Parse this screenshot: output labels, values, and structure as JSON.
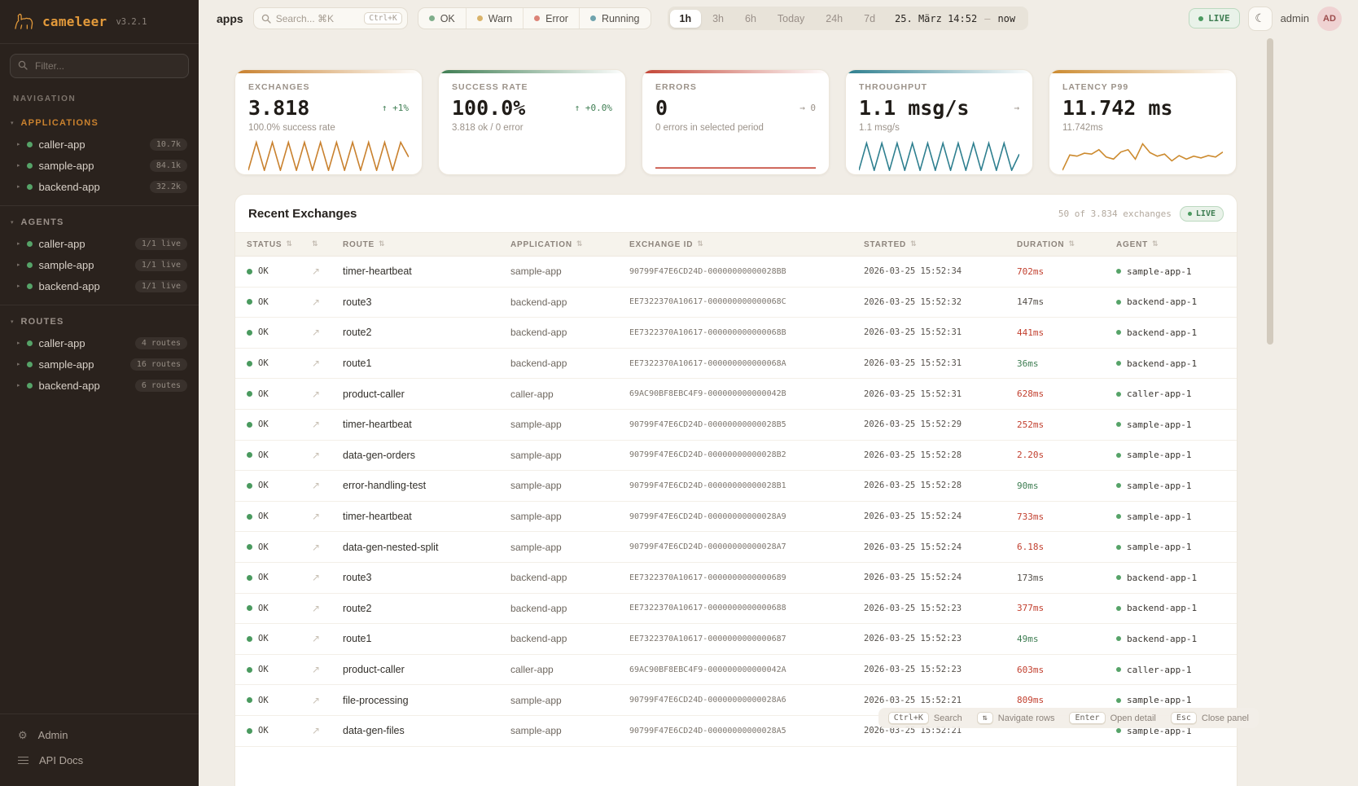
{
  "icons": {
    "sort": "⇅",
    "link": "↗",
    "moon": "☾",
    "gear": "⚙",
    "caret_section": "▾",
    "caret_item": "▸"
  },
  "sidebar": {
    "logo": "cameleer",
    "version": "v3.2.1",
    "filter_placeholder": "Filter...",
    "nav_label": "NAVIGATION",
    "sections": [
      {
        "label": "APPLICATIONS",
        "accent": true,
        "items": [
          {
            "name": "caller-app",
            "badge": "10.7k"
          },
          {
            "name": "sample-app",
            "badge": "84.1k"
          },
          {
            "name": "backend-app",
            "badge": "32.2k"
          }
        ]
      },
      {
        "label": "AGENTS",
        "accent": false,
        "items": [
          {
            "name": "caller-app",
            "badge": "1/1 live"
          },
          {
            "name": "sample-app",
            "badge": "1/1 live"
          },
          {
            "name": "backend-app",
            "badge": "1/1 live"
          }
        ]
      },
      {
        "label": "ROUTES",
        "accent": false,
        "items": [
          {
            "name": "caller-app",
            "badge": "4 routes"
          },
          {
            "name": "sample-app",
            "badge": "16 routes"
          },
          {
            "name": "backend-app",
            "badge": "6 routes"
          }
        ]
      }
    ],
    "footer": [
      {
        "label": "Admin",
        "icon": "gear"
      },
      {
        "label": "API Docs",
        "icon": "list"
      }
    ]
  },
  "topbar": {
    "context": "apps",
    "search_placeholder": "Search... ⌘K",
    "search_kbd": "Ctrl+K",
    "status_filters": [
      {
        "label": "OK",
        "color": "#7fae8b"
      },
      {
        "label": "Warn",
        "color": "#d9b36a"
      },
      {
        "label": "Error",
        "color": "#dc8377"
      },
      {
        "label": "Running",
        "color": "#6fa3ad"
      }
    ],
    "ranges": [
      "1h",
      "3h",
      "6h",
      "Today",
      "24h",
      "7d"
    ],
    "selected_range": "1h",
    "date_from": "25. März 14:52",
    "date_sep": "—",
    "date_to": "now",
    "live_label": "LIVE",
    "user": "admin",
    "avatar": "AD"
  },
  "kpis": [
    {
      "label": "EXCHANGES",
      "value": "3.818",
      "delta": "↑ +1%",
      "delta_type": "up",
      "subtitle": "100.0% success rate",
      "accent": "#c9812e",
      "spark": [
        100,
        5,
        100,
        5,
        100,
        5,
        100,
        5,
        100,
        5,
        100,
        5,
        100,
        5,
        100,
        5,
        100,
        5,
        100,
        5,
        55
      ]
    },
    {
      "label": "SUCCESS RATE",
      "value": "100.0%",
      "delta": "↑ +0.0%",
      "delta_type": "up",
      "subtitle": "3.818 ok / 0 error",
      "accent": "#3e7d52",
      "spark": null
    },
    {
      "label": "ERRORS",
      "value": "0",
      "delta": "→ 0",
      "delta_type": "flat",
      "subtitle": "0 errors in selected period",
      "accent": "#c44536",
      "spark": [
        92,
        92
      ]
    },
    {
      "label": "THROUGHPUT",
      "value": "1.1 msg/s",
      "delta": "→",
      "delta_type": "flat",
      "subtitle": "1.1 msg/s",
      "accent": "#2e7f8f",
      "spark": [
        100,
        8,
        100,
        8,
        100,
        8,
        100,
        8,
        100,
        8,
        100,
        8,
        100,
        8,
        100,
        8,
        100,
        8,
        100,
        8,
        100,
        45
      ]
    },
    {
      "label": "LATENCY P99",
      "value": "11.742 ms",
      "delta": "",
      "delta_type": "flat",
      "subtitle": "11.742ms",
      "accent": "#cc8a2e",
      "spark": [
        100,
        48,
        52,
        42,
        45,
        30,
        55,
        62,
        38,
        30,
        62,
        10,
        40,
        52,
        45,
        68,
        50,
        62,
        52,
        58,
        50,
        55,
        38
      ]
    }
  ],
  "table": {
    "title": "Recent Exchanges",
    "meta": "50 of 3.834 exchanges",
    "live_label": "LIVE",
    "columns": [
      {
        "label": "STATUS"
      },
      {
        "label": ""
      },
      {
        "label": "ROUTE"
      },
      {
        "label": "APPLICATION"
      },
      {
        "label": "EXCHANGE ID"
      },
      {
        "label": "STARTED"
      },
      {
        "label": "DURATION"
      },
      {
        "label": "AGENT"
      }
    ],
    "rows": [
      {
        "status": "OK",
        "route": "timer-heartbeat",
        "app": "sample-app",
        "id": "90799F47E6CD24D-00000000000028BB",
        "started": "2026-03-25 15:52:34",
        "duration": "702ms",
        "tone": "slow",
        "agent": "sample-app-1"
      },
      {
        "status": "OK",
        "route": "route3",
        "app": "backend-app",
        "id": "EE7322370A10617-000000000000068C",
        "started": "2026-03-25 15:52:32",
        "duration": "147ms",
        "tone": "normal",
        "agent": "backend-app-1"
      },
      {
        "status": "OK",
        "route": "route2",
        "app": "backend-app",
        "id": "EE7322370A10617-000000000000068B",
        "started": "2026-03-25 15:52:31",
        "duration": "441ms",
        "tone": "slow",
        "agent": "backend-app-1"
      },
      {
        "status": "OK",
        "route": "route1",
        "app": "backend-app",
        "id": "EE7322370A10617-000000000000068A",
        "started": "2026-03-25 15:52:31",
        "duration": "36ms",
        "tone": "fast",
        "agent": "backend-app-1"
      },
      {
        "status": "OK",
        "route": "product-caller",
        "app": "caller-app",
        "id": "69AC90BF8EBC4F9-000000000000042B",
        "started": "2026-03-25 15:52:31",
        "duration": "628ms",
        "tone": "slow",
        "agent": "caller-app-1"
      },
      {
        "status": "OK",
        "route": "timer-heartbeat",
        "app": "sample-app",
        "id": "90799F47E6CD24D-00000000000028B5",
        "started": "2026-03-25 15:52:29",
        "duration": "252ms",
        "tone": "slow",
        "agent": "sample-app-1"
      },
      {
        "status": "OK",
        "route": "data-gen-orders",
        "app": "sample-app",
        "id": "90799F47E6CD24D-00000000000028B2",
        "started": "2026-03-25 15:52:28",
        "duration": "2.20s",
        "tone": "slow",
        "agent": "sample-app-1"
      },
      {
        "status": "OK",
        "route": "error-handling-test",
        "app": "sample-app",
        "id": "90799F47E6CD24D-00000000000028B1",
        "started": "2026-03-25 15:52:28",
        "duration": "90ms",
        "tone": "fast",
        "agent": "sample-app-1"
      },
      {
        "status": "OK",
        "route": "timer-heartbeat",
        "app": "sample-app",
        "id": "90799F47E6CD24D-00000000000028A9",
        "started": "2026-03-25 15:52:24",
        "duration": "733ms",
        "tone": "slow",
        "agent": "sample-app-1"
      },
      {
        "status": "OK",
        "route": "data-gen-nested-split",
        "app": "sample-app",
        "id": "90799F47E6CD24D-00000000000028A7",
        "started": "2026-03-25 15:52:24",
        "duration": "6.18s",
        "tone": "slow",
        "agent": "sample-app-1"
      },
      {
        "status": "OK",
        "route": "route3",
        "app": "backend-app",
        "id": "EE7322370A10617-0000000000000689",
        "started": "2026-03-25 15:52:24",
        "duration": "173ms",
        "tone": "normal",
        "agent": "backend-app-1"
      },
      {
        "status": "OK",
        "route": "route2",
        "app": "backend-app",
        "id": "EE7322370A10617-0000000000000688",
        "started": "2026-03-25 15:52:23",
        "duration": "377ms",
        "tone": "slow",
        "agent": "backend-app-1"
      },
      {
        "status": "OK",
        "route": "route1",
        "app": "backend-app",
        "id": "EE7322370A10617-0000000000000687",
        "started": "2026-03-25 15:52:23",
        "duration": "49ms",
        "tone": "fast",
        "agent": "backend-app-1"
      },
      {
        "status": "OK",
        "route": "product-caller",
        "app": "caller-app",
        "id": "69AC90BF8EBC4F9-000000000000042A",
        "started": "2026-03-25 15:52:23",
        "duration": "603ms",
        "tone": "slow",
        "agent": "caller-app-1"
      },
      {
        "status": "OK",
        "route": "file-processing",
        "app": "sample-app",
        "id": "90799F47E6CD24D-00000000000028A6",
        "started": "2026-03-25 15:52:21",
        "duration": "809ms",
        "tone": "slow",
        "agent": "sample-app-1"
      },
      {
        "status": "OK",
        "route": "data-gen-files",
        "app": "sample-app",
        "id": "90799F47E6CD24D-00000000000028A5",
        "started": "2026-03-25 15:52:21",
        "duration": "",
        "tone": "normal",
        "agent": "sample-app-1"
      }
    ]
  },
  "hints": [
    {
      "key": "Ctrl+K",
      "label": "Search"
    },
    {
      "key": "⇅",
      "label": "Navigate rows"
    },
    {
      "key": "Enter",
      "label": "Open detail"
    },
    {
      "key": "Esc",
      "label": "Close panel"
    }
  ]
}
